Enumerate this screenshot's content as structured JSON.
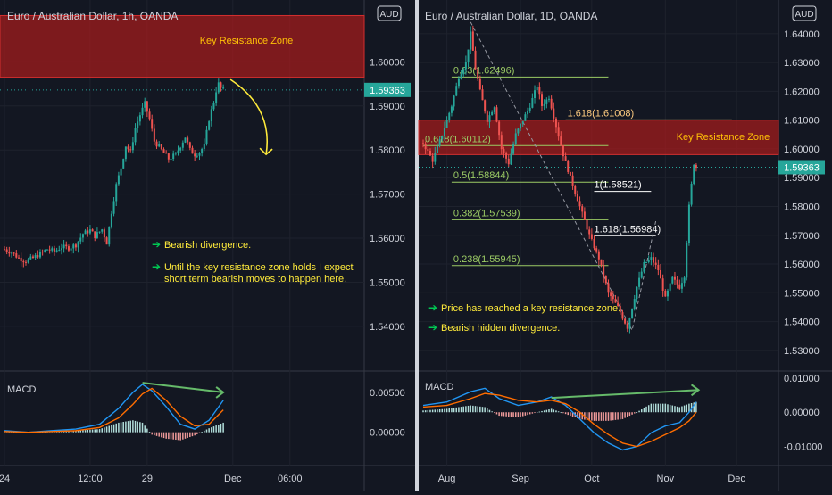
{
  "chart_data": [
    {
      "type": "candlestick",
      "title": "Euro / Australian Dollar, 1h, OANDA",
      "currency_badge": "AUD",
      "xlim_hours": [
        0,
        152
      ],
      "x_ticks": [
        {
          "label": "24",
          "x": 0
        },
        {
          "label": "12:00",
          "x": 36
        },
        {
          "label": "29",
          "x": 60
        },
        {
          "label": "Dec",
          "x": 96
        },
        {
          "label": "06:00",
          "x": 120
        }
      ],
      "ylim": [
        1.5335,
        1.611
      ],
      "y_ticks": [
        "1.60000",
        "1.59000",
        "1.58000",
        "1.57000",
        "1.56000",
        "1.55000",
        "1.54000"
      ],
      "y_tick_values": [
        1.6,
        1.59,
        1.58,
        1.57,
        1.56,
        1.55,
        1.54
      ],
      "current_price": 1.59363,
      "current_price_label": "1.59363",
      "ohlc_close_path": [
        [
          0,
          1.5575
        ],
        [
          3,
          1.5568
        ],
        [
          6,
          1.5555
        ],
        [
          9,
          1.5548
        ],
        [
          12,
          1.5555
        ],
        [
          15,
          1.5565
        ],
        [
          18,
          1.5575
        ],
        [
          21,
          1.557
        ],
        [
          24,
          1.558
        ],
        [
          27,
          1.5578
        ],
        [
          30,
          1.5585
        ],
        [
          33,
          1.561
        ],
        [
          36,
          1.5618
        ],
        [
          38,
          1.5605
        ],
        [
          41,
          1.562
        ],
        [
          43,
          1.559
        ],
        [
          45,
          1.566
        ],
        [
          47,
          1.572
        ],
        [
          49,
          1.576
        ],
        [
          51,
          1.581
        ],
        [
          53,
          1.5795
        ],
        [
          55,
          1.585
        ],
        [
          57,
          1.588
        ],
        [
          59,
          1.5905
        ],
        [
          61,
          1.587
        ],
        [
          63,
          1.582
        ],
        [
          66,
          1.58
        ],
        [
          69,
          1.578
        ],
        [
          72,
          1.579
        ],
        [
          74,
          1.581
        ],
        [
          76,
          1.583
        ],
        [
          78,
          1.58
        ],
        [
          80,
          1.579
        ],
        [
          82,
          1.5795
        ],
        [
          84,
          1.581
        ],
        [
          86,
          1.587
        ],
        [
          88,
          1.591
        ],
        [
          89,
          1.5935
        ],
        [
          90,
          1.595
        ],
        [
          91,
          1.594
        ],
        [
          92,
          1.5936
        ]
      ],
      "resistance_zone": {
        "from": 1.5965,
        "to": 1.6105,
        "label": "Key Resistance Zone"
      },
      "arrow": {
        "from": [
          95,
          1.596
        ],
        "to": [
          110,
          1.579
        ]
      },
      "annotations": [
        "Bearish divergence.",
        "Until the key resistance zone holds I expect",
        "short term bearish moves to happen here."
      ],
      "macd": {
        "label": "MACD",
        "ylim": [
          -0.0035,
          0.007
        ],
        "y_ticks": [
          "0.00500",
          "0.00000"
        ],
        "y_tick_values": [
          0.005,
          0.0
        ],
        "macd_line": [
          [
            0,
            0.0002
          ],
          [
            10,
            0.0
          ],
          [
            20,
            0.0002
          ],
          [
            30,
            0.0004
          ],
          [
            40,
            0.001
          ],
          [
            48,
            0.003
          ],
          [
            54,
            0.005
          ],
          [
            58,
            0.006
          ],
          [
            62,
            0.0052
          ],
          [
            68,
            0.0032
          ],
          [
            74,
            0.001
          ],
          [
            80,
            0.0004
          ],
          [
            86,
            0.0015
          ],
          [
            92,
            0.004
          ]
        ],
        "signal_line": [
          [
            0,
            0.0001
          ],
          [
            10,
            0.0
          ],
          [
            20,
            0.0001
          ],
          [
            30,
            0.0002
          ],
          [
            40,
            0.0006
          ],
          [
            48,
            0.0018
          ],
          [
            54,
            0.0035
          ],
          [
            58,
            0.0048
          ],
          [
            62,
            0.0055
          ],
          [
            68,
            0.004
          ],
          [
            74,
            0.002
          ],
          [
            80,
            0.0008
          ],
          [
            86,
            0.001
          ],
          [
            92,
            0.0028
          ]
        ],
        "divergence_line": {
          "from": [
            58,
            0.0062
          ],
          "to": [
            92,
            0.005
          ]
        }
      }
    },
    {
      "type": "candlestick",
      "title": "Euro / Australian Dollar, 1D, OANDA",
      "currency_badge": "AUD",
      "xlim_days": [
        0,
        150
      ],
      "x_ticks": [
        {
          "label": "Aug",
          "x": 10
        },
        {
          "label": "Sep",
          "x": 41
        },
        {
          "label": "Oct",
          "x": 71
        },
        {
          "label": "Nov",
          "x": 102
        },
        {
          "label": "Dec",
          "x": 132
        }
      ],
      "ylim": [
        1.525,
        1.648
      ],
      "y_ticks": [
        "1.64000",
        "1.63000",
        "1.62000",
        "1.61000",
        "1.60000",
        "1.59000",
        "1.58000",
        "1.57000",
        "1.56000",
        "1.55000",
        "1.54000",
        "1.53000"
      ],
      "y_tick_values": [
        1.64,
        1.63,
        1.62,
        1.61,
        1.6,
        1.59,
        1.58,
        1.57,
        1.56,
        1.55,
        1.54,
        1.53
      ],
      "current_price": 1.59363,
      "current_price_label": "1.59363",
      "ohlc_close_path": [
        [
          0,
          1.602
        ],
        [
          4,
          1.596
        ],
        [
          8,
          1.605
        ],
        [
          12,
          1.615
        ],
        [
          15,
          1.625
        ],
        [
          18,
          1.63
        ],
        [
          20,
          1.64
        ],
        [
          22,
          1.628
        ],
        [
          24,
          1.62
        ],
        [
          27,
          1.61
        ],
        [
          30,
          1.615
        ],
        [
          33,
          1.6
        ],
        [
          36,
          1.595
        ],
        [
          39,
          1.605
        ],
        [
          42,
          1.61
        ],
        [
          45,
          1.615
        ],
        [
          48,
          1.622
        ],
        [
          50,
          1.615
        ],
        [
          53,
          1.618
        ],
        [
          56,
          1.608
        ],
        [
          59,
          1.598
        ],
        [
          62,
          1.59
        ],
        [
          66,
          1.58
        ],
        [
          70,
          1.57
        ],
        [
          74,
          1.562
        ],
        [
          78,
          1.55
        ],
        [
          82,
          1.545
        ],
        [
          86,
          1.538
        ],
        [
          90,
          1.552
        ],
        [
          93,
          1.56
        ],
        [
          96,
          1.562
        ],
        [
          99,
          1.558
        ],
        [
          102,
          1.548
        ],
        [
          105,
          1.555
        ],
        [
          108,
          1.552
        ],
        [
          110,
          1.556
        ],
        [
          112,
          1.58
        ],
        [
          114,
          1.595
        ],
        [
          115,
          1.5936
        ]
      ],
      "resistance_zone": {
        "from": 1.598,
        "to": 1.61,
        "label": "Key Resistance Zone"
      },
      "fib_levels": [
        {
          "label": "0.83(1.62496)",
          "value": 1.62496,
          "x_from": 12,
          "x_to": 78
        },
        {
          "label": "1.618(1.61008)",
          "value": 1.61008,
          "x_from": 60,
          "x_to": 130
        },
        {
          "label": "0.618(1.60112)",
          "value": 1.60112,
          "x_from": 0,
          "x_to": 78
        },
        {
          "label": "0.5(1.58844)",
          "value": 1.58844,
          "x_from": 12,
          "x_to": 78
        },
        {
          "label": "1(1.58521)",
          "value": 1.58521,
          "x_from": 72,
          "x_to": 96
        },
        {
          "label": "0.382(1.57539)",
          "value": 1.57539,
          "x_from": 12,
          "x_to": 78
        },
        {
          "label": "1.618(1.56984)",
          "value": 1.56984,
          "x_from": 72,
          "x_to": 98
        },
        {
          "label": "0.238(1.55945)",
          "value": 1.55945,
          "x_from": 12,
          "x_to": 78
        }
      ],
      "dashed_path": [
        [
          20,
          1.644
        ],
        [
          88,
          1.537
        ],
        [
          98,
          1.575
        ]
      ],
      "annotations": [
        "Price has reached a key resistance zone.",
        "Bearish hidden divergence."
      ],
      "macd": {
        "label": "MACD",
        "ylim": [
          -0.014,
          0.011
        ],
        "y_ticks": [
          "0.01000",
          "0.00000",
          "-0.01000"
        ],
        "y_tick_values": [
          0.01,
          0.0,
          -0.01
        ],
        "macd_line": [
          [
            0,
            0.002
          ],
          [
            10,
            0.003
          ],
          [
            20,
            0.006
          ],
          [
            26,
            0.007
          ],
          [
            32,
            0.004
          ],
          [
            40,
            0.002
          ],
          [
            48,
            0.003
          ],
          [
            54,
            0.0045
          ],
          [
            60,
            0.002
          ],
          [
            66,
            -0.002
          ],
          [
            72,
            -0.006
          ],
          [
            78,
            -0.009
          ],
          [
            84,
            -0.011
          ],
          [
            90,
            -0.01
          ],
          [
            96,
            -0.006
          ],
          [
            102,
            -0.004
          ],
          [
            108,
            -0.003
          ],
          [
            112,
            0.0
          ],
          [
            115,
            0.003
          ]
        ],
        "signal_line": [
          [
            0,
            0.0015
          ],
          [
            10,
            0.002
          ],
          [
            20,
            0.004
          ],
          [
            26,
            0.0055
          ],
          [
            32,
            0.005
          ],
          [
            40,
            0.0035
          ],
          [
            48,
            0.003
          ],
          [
            54,
            0.0035
          ],
          [
            60,
            0.0025
          ],
          [
            66,
            0.0
          ],
          [
            72,
            -0.0035
          ],
          [
            78,
            -0.0065
          ],
          [
            84,
            -0.009
          ],
          [
            90,
            -0.01
          ],
          [
            96,
            -0.0085
          ],
          [
            102,
            -0.0065
          ],
          [
            108,
            -0.0045
          ],
          [
            112,
            -0.0025
          ],
          [
            115,
            0.0
          ]
        ],
        "divergence_line": {
          "from": [
            54,
            0.0042
          ],
          "to": [
            116,
            0.0065
          ]
        }
      }
    }
  ]
}
